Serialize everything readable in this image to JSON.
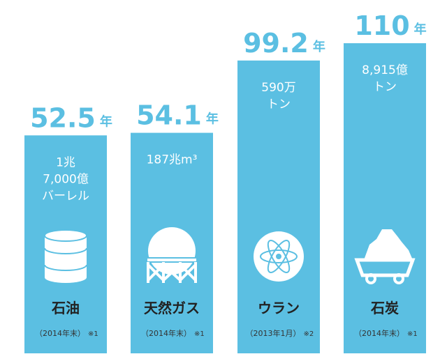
{
  "chart_data": {
    "type": "bar",
    "categories": [
      "石油",
      "天然ガス",
      "ウラン",
      "石炭"
    ],
    "values": [
      52.5,
      54.1,
      99.2,
      110
    ],
    "unit": "年",
    "color": "#5bbfe2",
    "reserves": [
      [
        "1兆",
        "7,000億",
        "バーレル"
      ],
      [
        "187兆m³"
      ],
      [
        "590万",
        "トン"
      ],
      [
        "8,915億",
        "トン"
      ]
    ],
    "dates": [
      "（2014年末）",
      "（2014年末）",
      "（2013年1月）",
      "（2014年末）"
    ],
    "notes": [
      "※1",
      "※1",
      "※2",
      "※1"
    ]
  }
}
